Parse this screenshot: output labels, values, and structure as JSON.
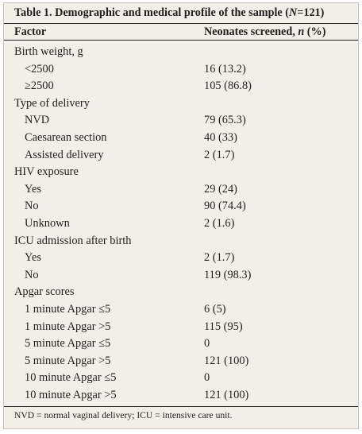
{
  "caption": {
    "prefix": "Table 1. Demographic and medical profile of the sample (",
    "n_symbol": "N",
    "suffix": "=121)"
  },
  "header": {
    "factor": "Factor",
    "value_prefix": "Neonates screened, ",
    "value_n": "n",
    "value_suffix": " (%)"
  },
  "rows": [
    {
      "label": "Birth weight, g",
      "value": "",
      "level": "group"
    },
    {
      "label": "<2500",
      "value": "16 (13.2)",
      "level": "sub"
    },
    {
      "label": "≥2500",
      "value": "105 (86.8)",
      "level": "sub"
    },
    {
      "label": "Type of delivery",
      "value": "",
      "level": "group"
    },
    {
      "label": "NVD",
      "value": "79 (65.3)",
      "level": "sub"
    },
    {
      "label": "Caesarean section",
      "value": "40 (33)",
      "level": "sub"
    },
    {
      "label": "Assisted delivery",
      "value": "2 (1.7)",
      "level": "sub"
    },
    {
      "label": "HIV exposure",
      "value": "",
      "level": "group"
    },
    {
      "label": "Yes",
      "value": "29 (24)",
      "level": "sub"
    },
    {
      "label": "No",
      "value": "90 (74.4)",
      "level": "sub"
    },
    {
      "label": "Unknown",
      "value": "2 (1.6)",
      "level": "sub"
    },
    {
      "label": "ICU admission after birth",
      "value": "",
      "level": "group"
    },
    {
      "label": "Yes",
      "value": "2 (1.7)",
      "level": "sub"
    },
    {
      "label": "No",
      "value": "119 (98.3)",
      "level": "sub"
    },
    {
      "label": "Apgar scores",
      "value": "",
      "level": "group"
    },
    {
      "label": "1 minute Apgar ≤5",
      "value": "6 (5)",
      "level": "sub"
    },
    {
      "label": "1 minute Apgar >5",
      "value": "115 (95)",
      "level": "sub"
    },
    {
      "label": "5 minute Apgar ≤5",
      "value": "0",
      "level": "sub"
    },
    {
      "label": "5 minute Apgar >5",
      "value": "121 (100)",
      "level": "sub"
    },
    {
      "label": "10 minute Apgar ≤5",
      "value": "0",
      "level": "sub"
    },
    {
      "label": "10 minute Apgar >5",
      "value": "121 (100)",
      "level": "sub"
    }
  ],
  "footnote": "NVD = normal vaginal delivery; ICU = intensive care unit."
}
